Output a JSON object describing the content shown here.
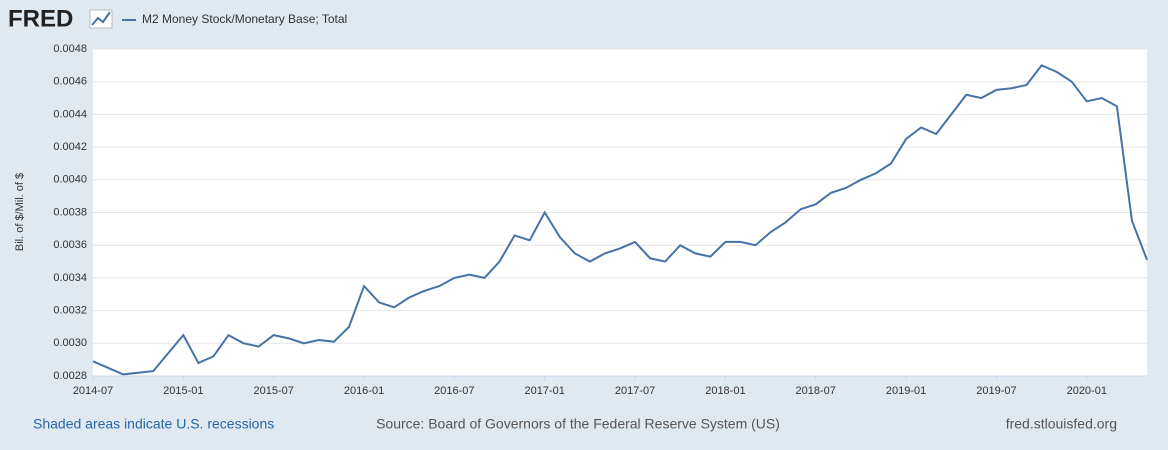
{
  "chart_data": {
    "type": "line",
    "brand": "FRED",
    "title": "M2 Money Stock/Monetary Base; Total",
    "y_label": "Bil. of $/Mil. of $",
    "note": "Shaded areas indicate U.S. recessions",
    "source": "Source: Board of Governors of the Federal Reserve System (US)",
    "site": "fred.stlouisfed.org",
    "x": [
      "2014-07",
      "2014-08",
      "2014-09",
      "2014-10",
      "2014-11",
      "2014-12",
      "2015-01",
      "2015-02",
      "2015-03",
      "2015-04",
      "2015-05",
      "2015-06",
      "2015-07",
      "2015-08",
      "2015-09",
      "2015-10",
      "2015-11",
      "2015-12",
      "2016-01",
      "2016-02",
      "2016-03",
      "2016-04",
      "2016-05",
      "2016-06",
      "2016-07",
      "2016-08",
      "2016-09",
      "2016-10",
      "2016-11",
      "2016-12",
      "2017-01",
      "2017-02",
      "2017-03",
      "2017-04",
      "2017-05",
      "2017-06",
      "2017-07",
      "2017-08",
      "2017-09",
      "2017-10",
      "2017-11",
      "2017-12",
      "2018-01",
      "2018-02",
      "2018-03",
      "2018-04",
      "2018-05",
      "2018-06",
      "2018-07",
      "2018-08",
      "2018-09",
      "2018-10",
      "2018-11",
      "2018-12",
      "2019-01",
      "2019-02",
      "2019-03",
      "2019-04",
      "2019-05",
      "2019-06",
      "2019-07",
      "2019-08",
      "2019-09",
      "2019-10",
      "2019-11",
      "2019-12",
      "2020-01",
      "2020-02",
      "2020-03",
      "2020-04",
      "2020-05"
    ],
    "series": [
      {
        "name": "M2 Money Stock/Monetary Base; Total",
        "color": "#4572a7",
        "values": [
          0.00289,
          0.00285,
          0.00281,
          0.00282,
          0.00283,
          0.00294,
          0.00305,
          0.00288,
          0.00292,
          0.00305,
          0.003,
          0.00298,
          0.00305,
          0.00303,
          0.003,
          0.00302,
          0.00301,
          0.0031,
          0.00335,
          0.00325,
          0.00322,
          0.00328,
          0.00332,
          0.00335,
          0.0034,
          0.00342,
          0.0034,
          0.0035,
          0.00366,
          0.00363,
          0.0038,
          0.00365,
          0.00355,
          0.0035,
          0.00355,
          0.00358,
          0.00362,
          0.00352,
          0.0035,
          0.0036,
          0.00355,
          0.00353,
          0.00362,
          0.00362,
          0.0036,
          0.00368,
          0.00374,
          0.00382,
          0.00385,
          0.00392,
          0.00395,
          0.004,
          0.00404,
          0.0041,
          0.00425,
          0.00432,
          0.00428,
          0.0044,
          0.00452,
          0.0045,
          0.00455,
          0.00456,
          0.00458,
          0.0047,
          0.00466,
          0.0046,
          0.00448,
          0.0045,
          0.00445,
          0.00375,
          0.00351
        ]
      }
    ],
    "xlim": [
      "2014-07",
      "2020-05"
    ],
    "xticks": [
      "2014-07",
      "2015-01",
      "2015-07",
      "2016-01",
      "2016-07",
      "2017-01",
      "2017-07",
      "2018-01",
      "2018-07",
      "2019-01",
      "2019-07",
      "2020-01"
    ],
    "ylim": [
      0.0028,
      0.0048
    ],
    "yticks": [
      0.0028,
      {
        "value": 0.003,
        "label": "0.0030"
      },
      0.0032,
      0.0034,
      0.0036,
      0.0038,
      {
        "value": 0.004,
        "label": "0.0040"
      },
      0.0042,
      0.0044,
      0.0046,
      0.0048
    ],
    "grid": true
  }
}
